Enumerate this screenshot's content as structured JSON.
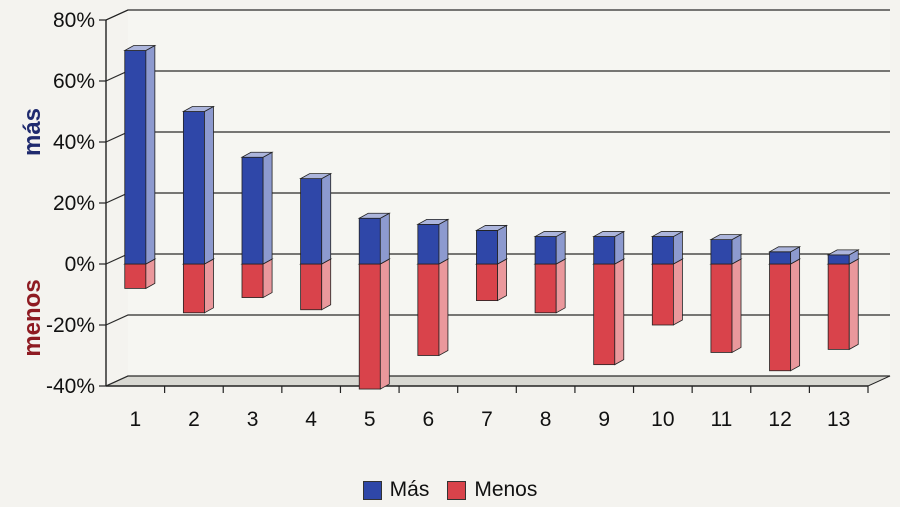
{
  "chart_data": {
    "type": "bar",
    "categories": [
      "1",
      "2",
      "3",
      "4",
      "5",
      "6",
      "7",
      "8",
      "9",
      "10",
      "11",
      "12",
      "13"
    ],
    "series": [
      {
        "name": "Más",
        "values": [
          70,
          50,
          35,
          28,
          15,
          13,
          11,
          9,
          9,
          9,
          8,
          4,
          3
        ],
        "color": "#2f47a8"
      },
      {
        "name": "Menos",
        "values": [
          -8,
          -16,
          -11,
          -15,
          -41,
          -30,
          -12,
          -16,
          -33,
          -20,
          -29,
          -35,
          -28
        ],
        "color": "#d9434b"
      }
    ],
    "ylim": [
      -40,
      80
    ],
    "yticks": [
      "80%",
      "60%",
      "40%",
      "20%",
      "0%",
      "-20%",
      "-40%"
    ],
    "ylabel_top": "más",
    "ylabel_bottom": "menos",
    "ylabel_top_color": "#1f2a6e",
    "ylabel_bottom_color": "#8e1b22",
    "grid": true,
    "legend_position": "bottom-center",
    "chart_style": "3d-stacked-positive-negative"
  }
}
